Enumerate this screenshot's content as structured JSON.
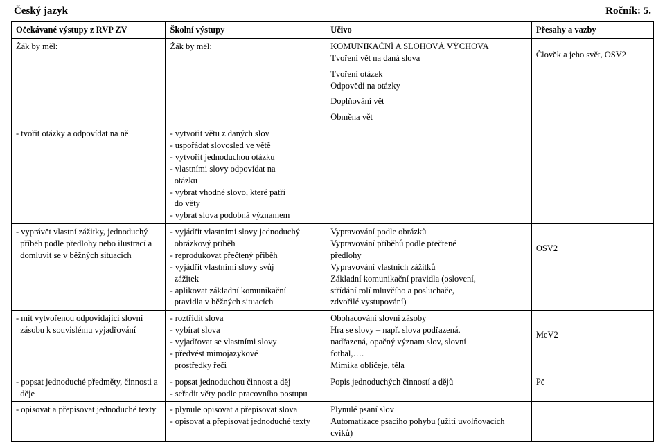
{
  "header": {
    "left": "Český jazyk",
    "right": "Ročník: 5."
  },
  "columns": {
    "c1": "Očekávané výstupy z RVP ZV",
    "c2": "Školní výstupy",
    "c3": "Učivo",
    "c4": "Přesahy a vazby"
  },
  "intro": {
    "c1": "Žák by měl:",
    "c2": "Žák by měl:"
  },
  "rows": [
    {
      "c1": [
        "- tvořit otázky a odpovídat na ně"
      ],
      "c2": [
        "- vytvořit větu z daných slov",
        "- uspořádat slovosled ve větě",
        "- vytvořit jednoduchou otázku",
        "- vlastními slovy odpovídat na",
        "  otázku",
        "- vybrat vhodné slovo, které patří",
        "  do věty",
        "- vybrat slova podobná významem"
      ],
      "c3": [
        "KOMUNIKAČNÍ A SLOHOVÁ VÝCHOVA",
        "Tvoření vět na daná slova",
        "",
        "Tvoření otázek",
        "Odpovědi na otázky",
        "",
        "Doplňování vět",
        "",
        "Obměna vět"
      ],
      "c4": [
        "",
        "",
        "Člověk a jeho svět, OSV2"
      ]
    },
    {
      "c1": [
        "- vyprávět vlastní zážitky,   jednoduchý",
        "  příběh podle  předlohy nebo ilustrací a",
        "  domluvit se v běžných  situacích"
      ],
      "c2": [
        "- vyjádřit vlastními slovy jednoduchý",
        "  obrázkový příběh",
        "- reprodukovat přečtený příběh",
        "- vyjádřit vlastními slovy svůj",
        "  zážitek",
        "- aplikovat základní komunikační",
        "  pravidla v běžných situacích"
      ],
      "c3": [
        "Vypravování podle obrázků",
        "Vypravování příběhů podle přečtené",
        "předlohy",
        "Vypravování vlastních zážitků",
        "Základní komunikační pravidla (oslovení,",
        "střídání rolí mluvčího a posluchače,",
        "zdvořilé vystupování)"
      ],
      "c4": [
        "",
        "",
        "",
        "",
        "OSV2"
      ]
    },
    {
      "c1": [
        "- mít vytvořenou odpovídající slovní",
        "  zásobu k souvislému vyjadřování"
      ],
      "c2": [
        "- roztřídit slova",
        "- vybírat slova",
        "- vyjadřovat se vlastními slovy",
        "- předvést mimojazykové",
        "  prostředky řeči"
      ],
      "c3": [
        "Obohacování slovní zásoby",
        "Hra se slovy – např. slova podřazená,",
        "nadřazená, opačný význam slov, slovní",
        "fotbal,….",
        "Mimika obličeje, těla"
      ],
      "c4": [
        "",
        "",
        "",
        "",
        "MeV2"
      ]
    },
    {
      "c1": [
        "- popsat jednoduché předměty, činnosti a",
        "  děje"
      ],
      "c2": [
        "- popsat jednoduchou činnost a děj",
        "- seřadit věty podle pracovního  postupu"
      ],
      "c3": [
        "Popis jednoduchých činností a dějů"
      ],
      "c4": [
        "Pč"
      ]
    },
    {
      "c1": [
        "- opisovat a přepisovat jednoduché texty"
      ],
      "c2": [
        "- plynule opisovat a přepisovat slova",
        "- opisovat a přepisovat jednoduché texty"
      ],
      "c3": [
        "Plynulé psaní slov",
        "Automatizace psacího pohybu (užití uvolňovacích",
        "cviků)"
      ],
      "c4": []
    }
  ]
}
